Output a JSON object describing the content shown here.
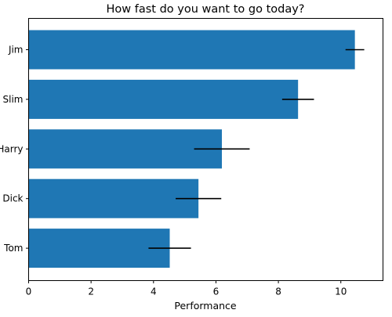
{
  "chart_data": {
    "type": "bar",
    "orientation": "horizontal",
    "title": "How fast do you want to go today?",
    "xlabel": "Performance",
    "ylabel": "",
    "categories": [
      "Jim",
      "Slim",
      "Harry",
      "Dick",
      "Tom"
    ],
    "values": [
      10.45,
      8.63,
      6.19,
      5.44,
      4.52
    ],
    "errors": [
      0.3,
      0.51,
      0.89,
      0.73,
      0.68
    ],
    "xlim": [
      0,
      11.35
    ],
    "x_ticks": [
      0,
      2,
      4,
      6,
      8,
      10
    ],
    "grid": false,
    "legend": "none",
    "bar_color": "#1f77b4",
    "error_color": "#000000"
  }
}
